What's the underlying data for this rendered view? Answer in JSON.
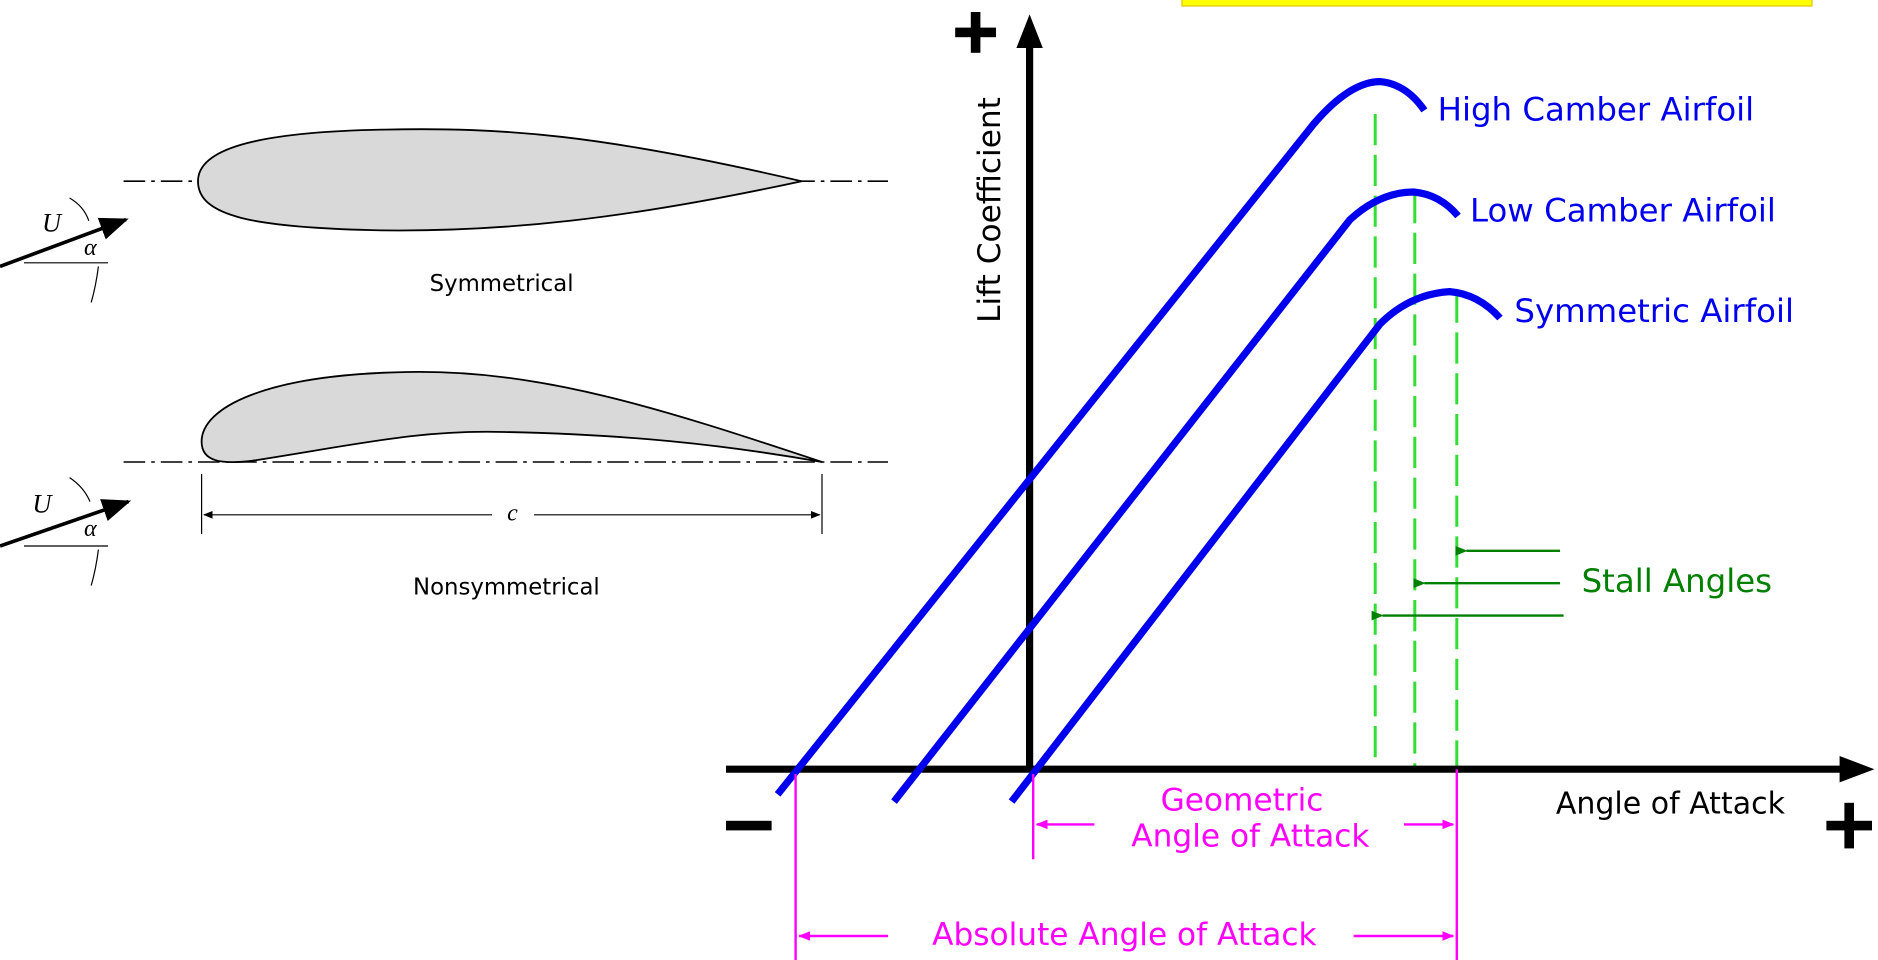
{
  "left": {
    "symmetrical": {
      "flow_label": "U",
      "angle_label": "α",
      "caption": "Symmetrical"
    },
    "nonsymmetrical": {
      "flow_label": "U",
      "angle_label": "α",
      "chord_label": "c",
      "caption": "Nonsymmetrical"
    }
  },
  "chart": {
    "y_axis_label": "Lift Coefficient",
    "x_axis_label": "Angle of Attack",
    "curves": [
      "High Camber Airfoil",
      "Low Camber Airfoil",
      "Symmetric Airfoil"
    ],
    "stall_label": "Stall Angles",
    "geometric_label": [
      "Geometric",
      "Angle of Attack"
    ],
    "absolute_label": "Absolute Angle of Attack"
  }
}
